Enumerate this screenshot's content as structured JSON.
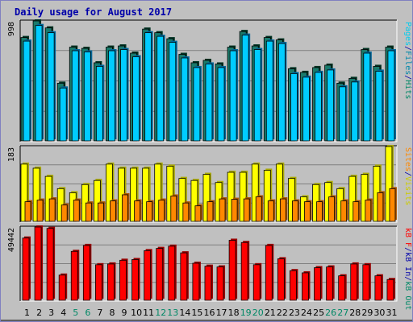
{
  "title": "Daily usage for August 2017",
  "colors": {
    "hits": "#00aaff",
    "hits_dark": "#006699",
    "files": "#00ccff",
    "files_dark": "#0088aa",
    "pages": "#00ccee",
    "visits": "#ffff00",
    "visits_dark": "#aaaa00",
    "sites": "#ff8800",
    "sites_dark": "#aa5500",
    "kbf": "#ff0000",
    "kbf_dark": "#990000",
    "weekend_label": "#008866",
    "weekday_label": "#000000",
    "panel_bg": "#c0c0c0",
    "frame_border": "#8080c0"
  },
  "panels": {
    "hits": {
      "max_label": "998",
      "legend": [
        {
          "text": "Pages",
          "color": "#00ccee"
        },
        {
          "text": "/",
          "color": "#0000aa"
        },
        {
          "text": "Files",
          "color": "#0088aa"
        },
        {
          "text": "/",
          "color": "#0000aa"
        },
        {
          "text": "Hits",
          "color": "#008866"
        }
      ]
    },
    "visits": {
      "max_label": "183",
      "legend": [
        {
          "text": "Sites",
          "color": "#ff8800"
        },
        {
          "text": "/",
          "color": "#0000aa"
        },
        {
          "text": "Visits",
          "color": "#cccc00"
        }
      ]
    },
    "kbytes": {
      "max_label": "49442",
      "legend": [
        {
          "text": "kB F",
          "color": "#ff0000"
        },
        {
          "text": "/",
          "color": "#0000aa"
        },
        {
          "text": "kB In",
          "color": "#0000aa"
        },
        {
          "text": "/",
          "color": "#0000aa"
        },
        {
          "text": "kB Out",
          "color": "#008866"
        }
      ]
    }
  },
  "chart_data": {
    "type": "bar",
    "categories": [
      "1",
      "2",
      "3",
      "4",
      "5",
      "6",
      "7",
      "8",
      "9",
      "10",
      "11",
      "12",
      "13",
      "14",
      "15",
      "16",
      "17",
      "18",
      "19",
      "20",
      "21",
      "22",
      "23",
      "24",
      "25",
      "26",
      "27",
      "28",
      "29",
      "30",
      "31"
    ],
    "weekend_days": [
      "5",
      "6",
      "12",
      "13",
      "19",
      "20",
      "26",
      "27"
    ],
    "series": [
      {
        "name": "Hits",
        "values": [
          860,
          998,
          940,
          480,
          780,
          770,
          650,
          780,
          790,
          730,
          930,
          900,
          850,
          720,
          650,
          670,
          640,
          780,
          910,
          790,
          860,
          840,
          600,
          570,
          610,
          630,
          480,
          520,
          760,
          620,
          780
        ]
      },
      {
        "name": "Files",
        "values": [
          830,
          960,
          900,
          440,
          750,
          740,
          620,
          750,
          760,
          700,
          900,
          870,
          820,
          690,
          610,
          640,
          610,
          750,
          880,
          760,
          830,
          810,
          560,
          530,
          570,
          590,
          450,
          490,
          730,
          580,
          750
        ]
      },
      {
        "name": "Pages",
        "values": [
          830,
          960,
          900,
          440,
          750,
          740,
          620,
          750,
          760,
          700,
          900,
          870,
          820,
          690,
          610,
          640,
          610,
          750,
          880,
          760,
          830,
          810,
          560,
          530,
          570,
          590,
          450,
          490,
          730,
          580,
          750
        ]
      },
      {
        "name": "Visits",
        "values": [
          140,
          130,
          110,
          80,
          70,
          90,
          100,
          140,
          130,
          130,
          130,
          140,
          135,
          105,
          100,
          115,
          95,
          120,
          120,
          140,
          125,
          140,
          105,
          60,
          90,
          95,
          80,
          110,
          115,
          135,
          183
        ]
      },
      {
        "name": "Sites",
        "values": [
          48,
          52,
          55,
          40,
          52,
          45,
          45,
          50,
          65,
          50,
          48,
          52,
          62,
          45,
          38,
          48,
          55,
          54,
          55,
          60,
          50,
          55,
          50,
          48,
          48,
          60,
          50,
          48,
          52,
          70,
          80
        ]
      },
      {
        "name": "kB F",
        "values": [
          42000,
          49442,
          48500,
          17000,
          33000,
          37000,
          24000,
          24500,
          27000,
          27500,
          33500,
          35000,
          36500,
          32000,
          25000,
          23000,
          22500,
          40500,
          39000,
          24000,
          37000,
          28000,
          20000,
          18500,
          22000,
          22500,
          16500,
          24500,
          24000,
          16500,
          14000
        ]
      }
    ]
  }
}
